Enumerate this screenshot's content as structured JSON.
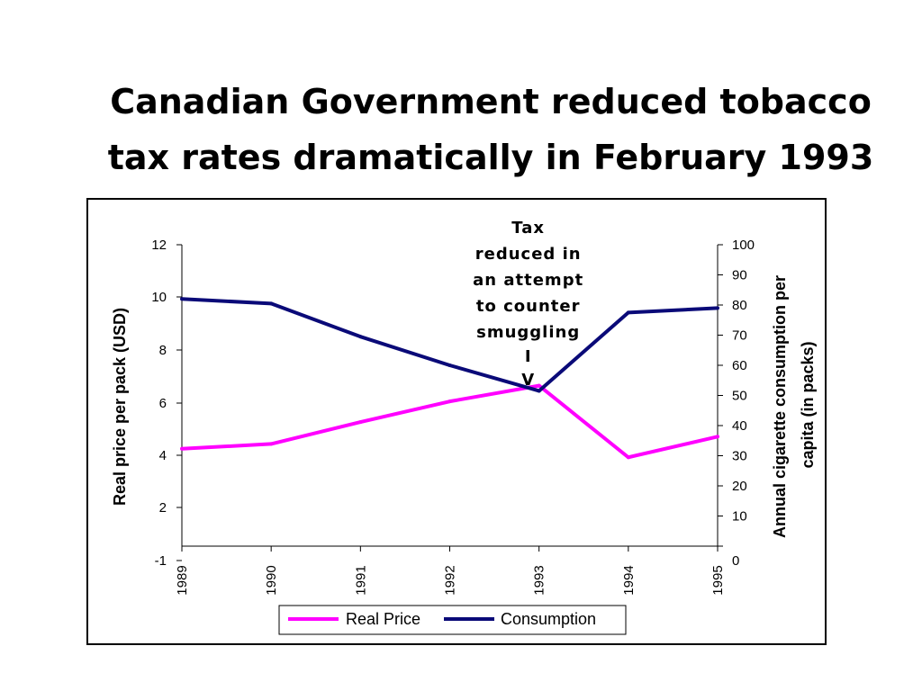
{
  "slide": {
    "title_line1": "Canadian Government reduced tobacco",
    "title_line2": "tax rates dramatically in February 1993"
  },
  "chart_data": {
    "type": "line",
    "categories": [
      "1989",
      "1990",
      "1991",
      "1992",
      "1993",
      "1994",
      "1995"
    ],
    "series": [
      {
        "name": "Real Price",
        "axis": "left",
        "color": "#ff00ff",
        "values": [
          3.6,
          3.8,
          4.7,
          5.55,
          6.2,
          3.25,
          4.1
        ]
      },
      {
        "name": "Consumption",
        "axis": "right",
        "color": "#0a0a78",
        "values": [
          82,
          80.5,
          69.5,
          60,
          51.5,
          77.5,
          79
        ]
      }
    ],
    "y_left": {
      "label": "Real price per pack (USD)",
      "ticks": [
        "-1",
        "2",
        "4",
        "6",
        "8",
        "10",
        "12"
      ]
    },
    "y_right": {
      "label_line1": "Annual cigarette consumption per",
      "label_line2": "capita (in packs)",
      "ticks": [
        "0",
        "10",
        "20",
        "30",
        "40",
        "50",
        "60",
        "70",
        "80",
        "90",
        "100"
      ],
      "ylim": [
        0,
        100
      ]
    },
    "annotation": {
      "x": "1993",
      "lines": [
        "Tax",
        "reduced in",
        "an attempt",
        "to counter",
        "smuggling",
        "I",
        "V"
      ]
    },
    "legend": {
      "position": "bottom-center"
    },
    "grid": false
  }
}
